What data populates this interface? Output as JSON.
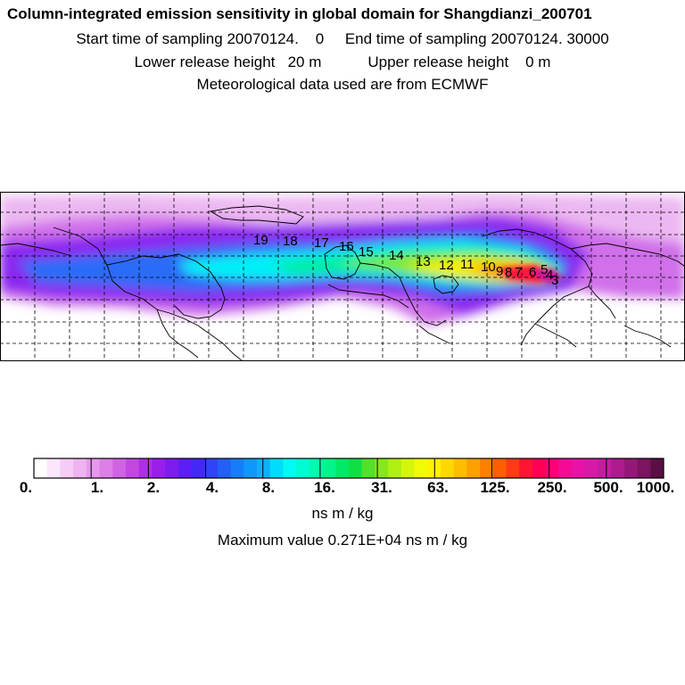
{
  "header": {
    "title": "Column-integrated emission sensitivity in global domain for Shangdianzi_200701",
    "start_label": "Start time of sampling",
    "start_value": "20070124.",
    "start_time": "0",
    "end_label": "End time of sampling",
    "end_value": "20070124. 30000",
    "lower_label": "Lower release height",
    "lower_value": "20 m",
    "upper_label": "Upper release height",
    "upper_value": "0 m",
    "met_line": "Meteorological data used are from ECMWF"
  },
  "map": {
    "day_markers": [
      "19",
      "18",
      "17",
      "16",
      "15",
      "14",
      "13",
      "12",
      "11",
      "10",
      "9",
      "8",
      "7",
      "6",
      "5",
      "4",
      "3"
    ],
    "colors": {
      "background": "#ffffff",
      "gridline": "#000000",
      "coast": "#000000"
    }
  },
  "colorbar": {
    "tick_labels": [
      "0.",
      "1.",
      "2.",
      "4.",
      "8.",
      "16.",
      "31.",
      "63.",
      "125.",
      "250.",
      "500.",
      "1000."
    ],
    "colors": [
      "#ffffff",
      "#fbe6fb",
      "#f5ccf6",
      "#eeb3f1",
      "#e699ec",
      "#dc7fe6",
      "#cf63e3",
      "#c247e2",
      "#b22de6",
      "#9a1eeb",
      "#7d1cf0",
      "#5f1df5",
      "#4428f7",
      "#3142f8",
      "#2260f8",
      "#167dfa",
      "#0f98fb",
      "#0bb2fb",
      "#00dcfb",
      "#00fbf3",
      "#00fbd2",
      "#00fbae",
      "#00f58a",
      "#00ea67",
      "#10df44",
      "#52e028",
      "#86e81a",
      "#b0ef12",
      "#d5f60b",
      "#f1fb06",
      "#fff200",
      "#ffd800",
      "#ffbd00",
      "#ffa000",
      "#ff8000",
      "#ff5d00",
      "#ff3a14",
      "#ff1432",
      "#ff0055",
      "#ff0078",
      "#f50a96",
      "#e812a6",
      "#d819a7",
      "#c41c9f",
      "#ad1b8f",
      "#951878",
      "#7c1460",
      "#5a0e44"
    ],
    "unit": "ns m / kg",
    "max_text": "Maximum value  0.271E+04 ns m / kg"
  }
}
